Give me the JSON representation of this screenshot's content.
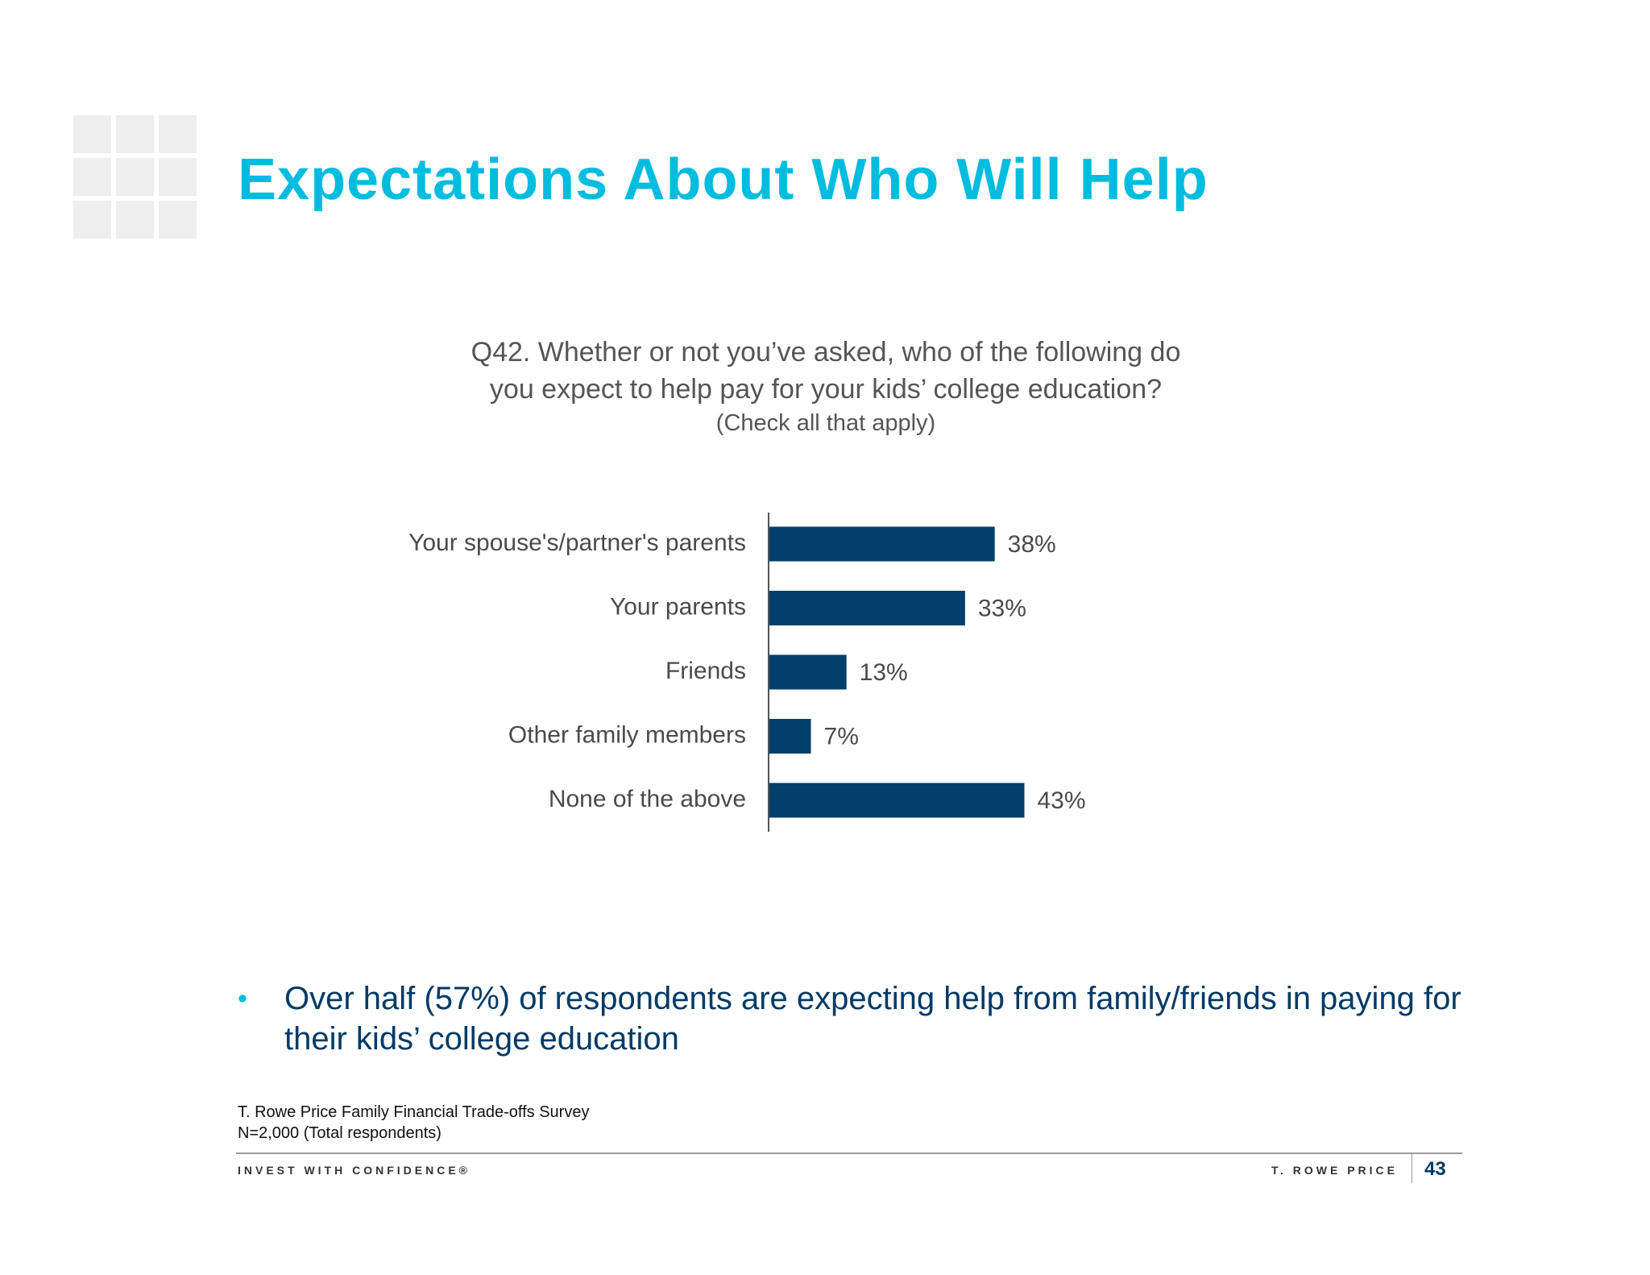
{
  "slide": {
    "title": "Expectations About Who Will Help",
    "question": {
      "line1": "Q42. Whether or not you’ve asked, who of the following do",
      "line2": "you expect to help pay for your kids’ college education?",
      "note": "(Check all that apply)"
    },
    "bullet": "Over half (57%) of respondents are expecting help from family/friends in paying for their kids’ college education",
    "source": {
      "line1": "T. Rowe Price Family Financial Trade-offs Survey",
      "line2": "N=2,000 (Total respondents)"
    },
    "footer": {
      "tagline": "INVEST WITH CONFIDENCE®",
      "brand": "T. ROWE PRICE",
      "page": "43"
    },
    "colors": {
      "title": "#00bcdf",
      "bar": "#003f6b",
      "bullet_text": "#003a66"
    }
  },
  "chart_data": {
    "type": "bar",
    "orientation": "horizontal",
    "categories": [
      "Your spouse's/partner's parents",
      "Your parents",
      "Friends",
      "Other family members",
      "None of the above"
    ],
    "values": [
      38,
      33,
      13,
      7,
      43
    ],
    "value_labels": [
      "38%",
      "33%",
      "13%",
      "7%",
      "43%"
    ],
    "unit": "%",
    "xlim": [
      0,
      100
    ],
    "grid": false,
    "legend": "none"
  }
}
